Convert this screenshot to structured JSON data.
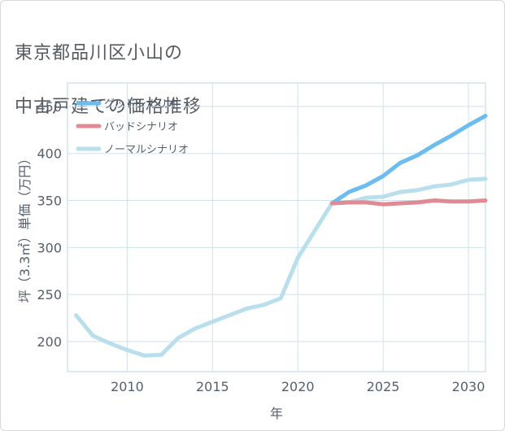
{
  "page": {
    "title_line1": "東京都品川区小山の",
    "title_line2": "中古戸建ての価格推移"
  },
  "chart_data": {
    "type": "line",
    "title": "東京都品川区小山の中古戸建ての価格推移",
    "xlabel": "年",
    "ylabel": "坪（3.3㎡）単価（万円）",
    "xlim": [
      2006.5,
      2031
    ],
    "ylim": [
      168,
      475
    ],
    "x_ticks": [
      2010,
      2015,
      2020,
      2025,
      2030
    ],
    "y_ticks": [
      200,
      250,
      300,
      350,
      400,
      450
    ],
    "grid": true,
    "legend": "top-left",
    "series": [
      {
        "name": "グッドシナリオ",
        "color": "#6cbcf0",
        "x": [
          2022,
          2023,
          2024,
          2025,
          2026,
          2027,
          2028,
          2029,
          2030,
          2031
        ],
        "values": [
          347,
          359,
          366,
          376,
          390,
          398,
          409,
          419,
          430,
          440
        ]
      },
      {
        "name": "バッドシナリオ",
        "color": "#e08a93",
        "x": [
          2022,
          2023,
          2024,
          2025,
          2026,
          2027,
          2028,
          2029,
          2030,
          2031
        ],
        "values": [
          347,
          348,
          348,
          346,
          347,
          348,
          350,
          349,
          349,
          350
        ]
      },
      {
        "name": "ノーマルシナリオ",
        "color": "#b9dfec",
        "x": [
          2007,
          2008,
          2009,
          2010,
          2011,
          2012,
          2013,
          2014,
          2015,
          2016,
          2017,
          2018,
          2019,
          2020,
          2021,
          2022,
          2023,
          2024,
          2025,
          2026,
          2027,
          2028,
          2029,
          2030,
          2031
        ],
        "values": [
          228,
          206,
          198,
          191,
          185,
          186,
          204,
          214,
          221,
          228,
          235,
          239,
          246,
          289,
          318,
          347,
          348,
          353,
          354,
          359,
          361,
          365,
          367,
          372,
          373
        ]
      }
    ]
  }
}
